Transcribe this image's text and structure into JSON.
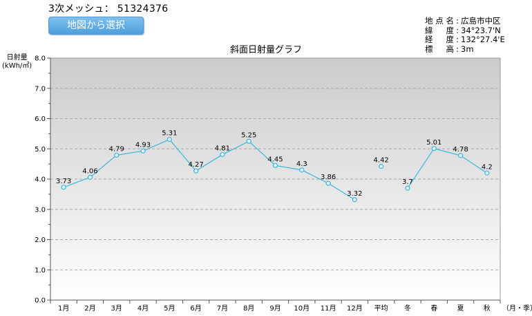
{
  "header": {
    "mesh_label": "3次メッシュ：",
    "mesh_code": "51324376",
    "map_button_label": "地図から選択"
  },
  "location": {
    "rows": [
      {
        "key": "地点名",
        "value": "広島市中区"
      },
      {
        "key": "緯度",
        "value": "34°23.7'N"
      },
      {
        "key": "経度",
        "value": "132°27.4'E"
      },
      {
        "key": "標高",
        "value": "3m"
      }
    ]
  },
  "chart_data": {
    "type": "line",
    "title": "斜面日射量グラフ",
    "ylabel_line1": "日射量",
    "ylabel_line2": "(kWh/㎡)",
    "xlabel": "（月・季）",
    "ylim": [
      0,
      8
    ],
    "yticks": [
      "0.0",
      "1.0",
      "2.0",
      "3.0",
      "4.0",
      "5.0",
      "6.0",
      "7.0",
      "8.0"
    ],
    "grid": true,
    "categories": [
      "1月",
      "2月",
      "3月",
      "4月",
      "5月",
      "6月",
      "7月",
      "8月",
      "9月",
      "10月",
      "11月",
      "12月",
      "平均",
      "冬",
      "春",
      "夏",
      "秋"
    ],
    "values": [
      3.73,
      4.06,
      4.79,
      4.93,
      5.31,
      4.27,
      4.81,
      5.25,
      4.45,
      4.3,
      3.86,
      3.32,
      4.42,
      3.7,
      5.01,
      4.78,
      4.2
    ],
    "value_labels": [
      "3.73",
      "4.06",
      "4.79",
      "4.93",
      "5.31",
      "4.27",
      "4.81",
      "5.25",
      "4.45",
      "4.3",
      "3.86",
      "3.32",
      "4.42",
      "3.7",
      "5.01",
      "4.78",
      "4.2"
    ],
    "segments": [
      [
        0,
        11
      ],
      [
        12,
        12
      ],
      [
        13,
        16
      ]
    ],
    "colors": {
      "line": "#38b6e0",
      "marker_fill": "#e6f6fc",
      "grid": "#a9a9a9",
      "plot_top": "#cbcbcb",
      "plot_bottom": "#ffffff"
    }
  }
}
